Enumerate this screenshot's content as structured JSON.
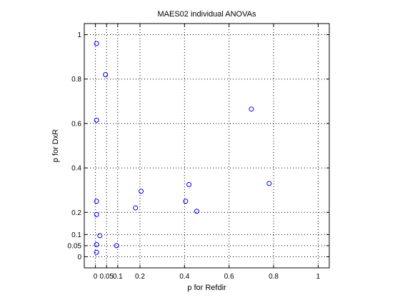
{
  "chart_data": {
    "type": "scatter",
    "title": "MAES02 individual ANOVAs",
    "xlabel": "p for Refdir",
    "ylabel": "p for DxR",
    "xlim": [
      -0.05,
      1.05
    ],
    "ylim": [
      -0.05,
      1.05
    ],
    "grid": true,
    "legend": "none",
    "marker": "open-circle",
    "marker_color": "#0000ff",
    "xticks": [
      0,
      0.05,
      0.1,
      0.2,
      0.4,
      0.6,
      0.8,
      1
    ],
    "xtick_labels": [
      "0",
      "0.05",
      "0.1",
      "0.2",
      "0.4",
      "0.6",
      "0.8",
      "1"
    ],
    "yticks": [
      0,
      0.05,
      0.1,
      0.2,
      0.4,
      0.6,
      0.8,
      1
    ],
    "ytick_labels": [
      "0",
      "0.05",
      "0.1",
      "0.2",
      "0.4",
      "0.6",
      "0.8",
      "1"
    ],
    "points": [
      {
        "x": 0.005,
        "y": 0.96
      },
      {
        "x": 0.045,
        "y": 0.82
      },
      {
        "x": 0.005,
        "y": 0.615
      },
      {
        "x": 0.7,
        "y": 0.665
      },
      {
        "x": 0.78,
        "y": 0.33
      },
      {
        "x": 0.005,
        "y": 0.25
      },
      {
        "x": 0.005,
        "y": 0.19
      },
      {
        "x": 0.205,
        "y": 0.295
      },
      {
        "x": 0.42,
        "y": 0.325
      },
      {
        "x": 0.405,
        "y": 0.25
      },
      {
        "x": 0.18,
        "y": 0.22
      },
      {
        "x": 0.455,
        "y": 0.205
      },
      {
        "x": 0.02,
        "y": 0.095
      },
      {
        "x": 0.005,
        "y": 0.055
      },
      {
        "x": 0.095,
        "y": 0.05
      },
      {
        "x": 0.005,
        "y": 0.02
      }
    ]
  }
}
